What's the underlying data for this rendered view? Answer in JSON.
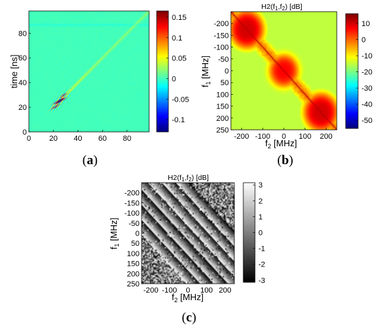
{
  "panels": [
    {
      "id": "a",
      "label": "(a)"
    },
    {
      "id": "b",
      "label": "(b)"
    },
    {
      "id": "c",
      "label": "(c)"
    }
  ],
  "chart_data": [
    {
      "id": "a",
      "type": "heatmap",
      "title": "",
      "xlabel": "",
      "ylabel": "time [ns]",
      "xlim": [
        0,
        98
      ],
      "ylim": [
        0,
        98
      ],
      "x_ticks": [
        0,
        20,
        40,
        60,
        80
      ],
      "y_ticks": [
        0,
        20,
        40,
        60,
        80
      ],
      "colormap": "jet",
      "colorbar": {
        "range": [
          -0.13,
          0.165
        ],
        "ticks": [
          0.15,
          0.1,
          0.05,
          0,
          -0.05,
          -0.1
        ],
        "tick_labels": [
          "0.15",
          "0.1",
          "0.05",
          "0",
          "-0.05",
          "-0.1"
        ]
      },
      "pattern": "oscillating lobe along diagonal centred near (24, 24), faint diagonal ridge to (98, 98)"
    },
    {
      "id": "b",
      "type": "heatmap",
      "title": "H2(f1,f2) [dB]",
      "xlabel": "f2 [MHz]",
      "ylabel": "f1 [MHz]",
      "xlim": [
        -250,
        250
      ],
      "ylim": [
        -250,
        250
      ],
      "x_ticks": [
        -200,
        -100,
        0,
        100,
        200
      ],
      "y_ticks": [
        -200,
        -150,
        -100,
        -50,
        0,
        50,
        100,
        150,
        200,
        250
      ],
      "colormap": "jet",
      "colorbar": {
        "range": [
          -55,
          16
        ],
        "ticks": [
          10,
          0,
          -10,
          -20,
          -30,
          -40,
          -50
        ],
        "tick_labels": [
          "10",
          "0",
          "-10",
          "-20",
          "-30",
          "-40",
          "-50"
        ]
      },
      "pattern": "high-power blocks around (-180,-180), (0,0), (180,180) plus diagonal ridge; noisy floor about -25 dB"
    },
    {
      "id": "c",
      "type": "heatmap",
      "title": "H2(f1,f2) [dB]",
      "xlabel": "f2 [MHz]",
      "ylabel": "f1 [MHz]",
      "xlim": [
        -250,
        250
      ],
      "ylim": [
        -250,
        250
      ],
      "x_ticks": [
        -200,
        -100,
        0,
        100,
        200
      ],
      "y_ticks": [
        -200,
        -150,
        -100,
        -50,
        0,
        50,
        100,
        150,
        200,
        250
      ],
      "colormap": "gray",
      "colorbar": {
        "range": [
          -3.14,
          3.14
        ],
        "ticks": [
          3,
          2,
          1,
          0,
          -1,
          -2,
          -3
        ],
        "tick_labels": [
          "3",
          "2",
          "1",
          "0",
          "-1",
          "-2",
          "-3"
        ]
      },
      "pattern": "phase stripes parallel to the diagonal, noisy in off-diagonal corners"
    }
  ]
}
